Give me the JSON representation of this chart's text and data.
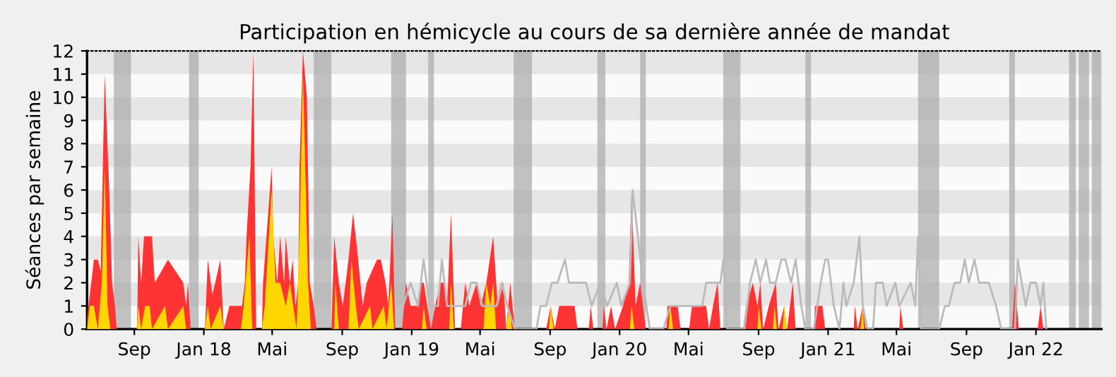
{
  "chart_data": {
    "type": "area",
    "title": "Participation en hémicycle au cours de sa dernière année de mandat",
    "ylabel": "Séances par semaine",
    "xlim": [
      "2017-06-10",
      "2022-04-26"
    ],
    "ylim": [
      0,
      12
    ],
    "yticks": [
      0,
      1,
      2,
      3,
      4,
      5,
      6,
      7,
      8,
      9,
      10,
      11,
      12
    ],
    "xticks": [
      {
        "value": "2017-09-01",
        "label": "Sep"
      },
      {
        "value": "2018-01-01",
        "label": "Jan 18"
      },
      {
        "value": "2018-05-01",
        "label": "Mai"
      },
      {
        "value": "2018-09-01",
        "label": "Sep"
      },
      {
        "value": "2019-01-01",
        "label": "Jan 19"
      },
      {
        "value": "2019-05-01",
        "label": "Mai"
      },
      {
        "value": "2019-09-01",
        "label": "Sep"
      },
      {
        "value": "2020-01-01",
        "label": "Jan 20"
      },
      {
        "value": "2020-05-01",
        "label": "Mai"
      },
      {
        "value": "2020-09-01",
        "label": "Sep"
      },
      {
        "value": "2021-01-01",
        "label": "Jan 21"
      },
      {
        "value": "2021-05-01",
        "label": "Mai"
      },
      {
        "value": "2021-09-01",
        "label": "Sep"
      },
      {
        "value": "2022-01-01",
        "label": "Jan 22"
      }
    ],
    "grid": false,
    "legend": false,
    "series": [
      {
        "type": "line",
        "color": "#bbbbbb",
        "x": [
          "2018-12-17",
          "2018-12-30",
          "2019-01-12",
          "2019-01-22",
          "2019-02-01",
          "2019-02-16",
          "2019-02-23",
          "2019-03-04",
          "2019-04-05",
          "2019-04-15",
          "2019-04-25",
          "2019-05-05",
          "2019-05-30",
          "2019-06-08",
          "2019-06-18",
          "2019-07-01",
          "2019-08-08",
          "2019-08-15",
          "2019-08-25",
          "2019-09-04",
          "2019-09-14",
          "2019-09-27",
          "2019-10-04",
          "2019-11-03",
          "2019-11-13",
          "2019-11-28",
          "2019-12-10",
          "2019-12-27",
          "2020-01-04",
          "2020-01-19",
          "2020-01-24",
          "2020-02-11",
          "2020-02-23",
          "2020-03-18",
          "2020-03-30",
          "2020-04-12",
          "2020-05-25",
          "2020-06-01",
          "2020-06-26",
          "2020-07-01",
          "2020-07-08",
          "2020-08-07",
          "2020-08-17",
          "2020-08-27",
          "2020-09-04",
          "2020-09-14",
          "2020-09-21",
          "2020-10-01",
          "2020-10-11",
          "2020-10-18",
          "2020-10-28",
          "2020-11-05",
          "2020-11-15",
          "2020-11-22",
          "2020-12-07",
          "2020-12-19",
          "2020-12-27",
          "2021-01-01",
          "2021-01-11",
          "2021-01-21",
          "2021-01-28",
          "2021-02-02",
          "2021-02-15",
          "2021-02-25",
          "2021-03-03",
          "2021-03-11",
          "2021-03-21",
          "2021-03-26",
          "2021-04-07",
          "2021-04-14",
          "2021-04-29",
          "2021-05-06",
          "2021-05-26",
          "2021-06-03",
          "2021-06-08",
          "2021-06-13",
          "2021-07-15",
          "2021-07-25",
          "2021-08-01",
          "2021-08-11",
          "2021-08-21",
          "2021-08-29",
          "2021-09-05",
          "2021-09-15",
          "2021-09-23",
          "2021-10-03",
          "2021-10-10",
          "2021-10-23",
          "2021-11-01",
          "2021-11-25",
          "2021-11-30",
          "2021-12-07",
          "2021-12-14",
          "2021-12-22",
          "2022-01-01",
          "2022-01-09",
          "2022-01-14",
          "2022-01-19"
        ],
        "values": [
          1,
          2,
          1,
          3,
          1,
          1,
          3,
          1,
          1,
          2,
          2,
          1,
          1,
          2,
          1,
          0,
          0,
          1,
          1,
          2,
          2,
          3,
          2,
          2,
          1,
          2,
          1,
          2,
          1,
          2,
          6,
          2,
          0,
          0,
          1,
          1,
          1,
          2,
          2,
          3,
          0,
          0,
          2,
          3,
          2,
          3,
          2,
          2,
          3,
          3,
          2,
          3,
          1,
          0,
          0,
          2,
          3,
          3,
          1,
          0,
          2,
          1,
          2,
          4,
          1,
          0,
          0,
          2,
          2,
          1,
          2,
          1,
          2,
          1,
          4,
          0,
          0,
          1,
          1,
          2,
          2,
          3,
          2,
          3,
          2,
          2,
          2,
          1,
          0,
          0,
          3,
          2,
          1,
          2,
          2,
          1,
          2,
          0
        ]
      },
      {
        "color": "#ff3333",
        "x": [
          "2017-06-10",
          "2017-06-15",
          "2017-06-22",
          "2017-06-29",
          "2017-07-04",
          "2017-07-11",
          "2017-07-19",
          "2017-07-24",
          "2017-07-29",
          "2017-08-01",
          "2017-09-06",
          "2017-09-08",
          "2017-09-13",
          "2017-09-18",
          "2017-09-25",
          "2017-10-02",
          "2017-10-07",
          "2017-10-30",
          "2017-11-26",
          "2017-12-01",
          "2017-12-04",
          "2017-12-09",
          "2018-01-03",
          "2018-01-08",
          "2018-01-16",
          "2018-01-21",
          "2018-01-30",
          "2018-02-05",
          "2018-02-15",
          "2018-03-09",
          "2018-03-14",
          "2018-03-17",
          "2018-03-24",
          "2018-03-29",
          "2018-04-03",
          "2018-04-13",
          "2018-04-15",
          "2018-04-30",
          "2018-05-03",
          "2018-05-10",
          "2018-05-15",
          "2018-05-22",
          "2018-05-25",
          "2018-06-01",
          "2018-06-06",
          "2018-06-11",
          "2018-06-16",
          "2018-06-18",
          "2018-06-24",
          "2018-07-01",
          "2018-07-06",
          "2018-07-13",
          "2018-07-18",
          "2018-08-13",
          "2018-08-18",
          "2018-08-26",
          "2018-09-02",
          "2018-09-12",
          "2018-09-20",
          "2018-09-27",
          "2018-10-07",
          "2018-10-14",
          "2018-11-01",
          "2018-11-08",
          "2018-11-16",
          "2018-11-21",
          "2018-11-28",
          "2018-12-03",
          "2018-12-15",
          "2018-12-22",
          "2018-12-30",
          "2019-01-10",
          "2019-01-17",
          "2019-01-22",
          "2019-02-04",
          "2019-02-11",
          "2019-02-21",
          "2019-02-28",
          "2019-03-04",
          "2019-03-11",
          "2019-03-18",
          "2019-03-28",
          "2019-04-05",
          "2019-04-12",
          "2019-04-25",
          "2019-05-02",
          "2019-05-12",
          "2019-05-24",
          "2019-06-01",
          "2019-06-11",
          "2019-06-16",
          "2019-06-23",
          "2019-07-01",
          "2019-08-25",
          "2019-09-02",
          "2019-09-09",
          "2019-09-17",
          "2019-09-19",
          "2019-10-14",
          "2019-10-19",
          "2019-11-08",
          "2019-11-11",
          "2019-11-16",
          "2019-12-02",
          "2019-12-04",
          "2019-12-09",
          "2019-12-17",
          "2019-12-24",
          "2020-01-07",
          "2020-01-17",
          "2020-01-22",
          "2020-01-29",
          "2020-02-06",
          "2020-02-16",
          "2020-03-23",
          "2020-03-25",
          "2020-04-12",
          "2020-04-17",
          "2020-05-02",
          "2020-05-07",
          "2020-06-01",
          "2020-06-06",
          "2020-06-13",
          "2020-06-21",
          "2020-06-26",
          "2020-08-05",
          "2020-08-10",
          "2020-08-22",
          "2020-08-30",
          "2020-09-04",
          "2020-09-09",
          "2020-09-19",
          "2020-10-01",
          "2020-10-06",
          "2020-10-16",
          "2020-10-21",
          "2020-10-31",
          "2020-11-05",
          "2020-12-07",
          "2020-12-09",
          "2020-12-22",
          "2020-12-27",
          "2021-02-15",
          "2021-02-17",
          "2021-02-22",
          "2021-03-03",
          "2021-03-08",
          "2021-05-06",
          "2021-05-08",
          "2021-05-13",
          "2021-11-20",
          "2021-11-25",
          "2021-12-02",
          "2022-01-04",
          "2022-01-09",
          "2022-01-14",
          "2022-04-26"
        ],
        "values": [
          0.5,
          1.5,
          3,
          3,
          2.5,
          11,
          6,
          2,
          1,
          0,
          0,
          4,
          2,
          4,
          4,
          4,
          2,
          3,
          2,
          1,
          2,
          0,
          0,
          3,
          1.5,
          2,
          3,
          0,
          1,
          1,
          2,
          4,
          7,
          12,
          0,
          0,
          2,
          7,
          4,
          2,
          4,
          2,
          4,
          2,
          3,
          1,
          2,
          7,
          12,
          10,
          2,
          1,
          0,
          0,
          4,
          2,
          1,
          3,
          5,
          3.5,
          1,
          2,
          3,
          3,
          2,
          1,
          5,
          0,
          0,
          2,
          1,
          1,
          2,
          2,
          0,
          1,
          2,
          2,
          1,
          5,
          0,
          0,
          2,
          1,
          2,
          1,
          2,
          4,
          1,
          2,
          0,
          2,
          0,
          0,
          1,
          0,
          1,
          1,
          1,
          0,
          0,
          1,
          0,
          0,
          1,
          0,
          1,
          0,
          1,
          2,
          6,
          1,
          2,
          0,
          0,
          1,
          1,
          0,
          0,
          1,
          1,
          0,
          1,
          2,
          0,
          0,
          1,
          2,
          1,
          2,
          0,
          1,
          2,
          0,
          1,
          0,
          2,
          0,
          0,
          1,
          1,
          0,
          0,
          1,
          0,
          1,
          0,
          0,
          1,
          0,
          0,
          2,
          0,
          0,
          1,
          0,
          0
        ]
      },
      {
        "color": "#ffd700",
        "x": [
          "2017-06-10",
          "2017-06-15",
          "2017-06-22",
          "2017-06-29",
          "2017-07-06",
          "2017-07-11",
          "2017-07-16",
          "2017-07-21",
          "2017-09-06",
          "2017-09-08",
          "2017-09-13",
          "2017-09-20",
          "2017-09-28",
          "2017-10-02",
          "2017-10-25",
          "2017-10-30",
          "2017-11-26",
          "2017-12-01",
          "2018-01-03",
          "2018-01-08",
          "2018-01-13",
          "2018-01-30",
          "2018-02-05",
          "2018-03-07",
          "2018-03-12",
          "2018-03-22",
          "2018-03-27",
          "2018-04-13",
          "2018-04-18",
          "2018-04-30",
          "2018-05-07",
          "2018-05-15",
          "2018-05-25",
          "2018-06-01",
          "2018-06-13",
          "2018-06-18",
          "2018-06-24",
          "2018-07-03",
          "2018-07-08",
          "2018-08-18",
          "2018-08-20",
          "2018-08-26",
          "2018-09-12",
          "2018-09-17",
          "2018-09-25",
          "2018-09-30",
          "2018-10-20",
          "2018-10-24",
          "2018-11-13",
          "2018-11-18",
          "2018-11-26",
          "2018-12-01",
          "2019-01-19",
          "2019-01-22",
          "2019-01-27",
          "2019-03-08",
          "2019-03-11",
          "2019-03-16",
          "2019-05-07",
          "2019-05-12",
          "2019-05-19",
          "2019-05-24",
          "2019-05-29",
          "2019-06-16",
          "2019-06-21",
          "2019-06-26",
          "2019-08-30",
          "2019-09-02",
          "2019-09-07",
          "2020-01-19",
          "2020-01-22",
          "2020-01-27",
          "2020-03-27",
          "2020-03-30",
          "2020-04-04",
          "2020-08-30",
          "2020-09-01",
          "2020-09-06",
          "2020-09-26",
          "2020-09-29",
          "2020-10-03",
          "2020-10-13",
          "2020-10-16",
          "2020-10-21",
          "2021-02-27",
          "2021-03-03",
          "2021-03-05",
          "2022-04-26"
        ],
        "values": [
          0,
          1,
          1,
          0,
          2,
          7,
          1,
          0,
          0,
          1,
          0,
          1,
          1,
          0,
          1,
          0,
          1,
          0,
          0,
          1,
          0,
          1,
          0,
          0,
          1,
          4,
          0,
          0,
          1,
          6,
          2,
          2,
          1,
          2,
          0,
          4,
          11,
          2,
          0,
          0,
          2,
          0,
          0,
          3,
          1,
          0,
          1,
          0,
          1,
          0,
          2,
          0,
          0,
          1,
          0,
          0,
          2,
          0,
          0,
          2,
          1,
          2,
          0,
          0,
          1,
          0,
          0,
          1,
          0,
          0,
          1,
          0,
          0,
          1,
          0,
          0,
          1,
          0,
          0,
          1,
          0,
          0,
          1,
          0,
          0,
          1,
          0,
          0
        ]
      }
    ],
    "bands": [
      {
        "axis": "y",
        "from": 1,
        "to": 2,
        "color": "#e6e6e6"
      },
      {
        "axis": "y",
        "from": 3,
        "to": 4,
        "color": "#e6e6e6"
      },
      {
        "axis": "y",
        "from": 5,
        "to": 6,
        "color": "#e6e6e6"
      },
      {
        "axis": "y",
        "from": 7,
        "to": 8,
        "color": "#e6e6e6"
      },
      {
        "axis": "y",
        "from": 9,
        "to": 10,
        "color": "#e6e6e6"
      },
      {
        "axis": "y",
        "from": 11,
        "to": 12,
        "color": "#e6e6e6"
      },
      {
        "axis": "x",
        "from": "2017-07-27",
        "to": "2017-08-26",
        "color": "#a8a8a8"
      },
      {
        "axis": "x",
        "from": "2017-12-06",
        "to": "2017-12-23",
        "color": "#a8a8a8"
      },
      {
        "axis": "x",
        "from": "2018-07-13",
        "to": "2018-08-13",
        "color": "#a8a8a8"
      },
      {
        "axis": "x",
        "from": "2018-11-26",
        "to": "2018-12-22",
        "color": "#a8a8a8"
      },
      {
        "axis": "x",
        "from": "2019-01-30",
        "to": "2019-02-09",
        "color": "#a8a8a8"
      },
      {
        "axis": "x",
        "from": "2019-06-29",
        "to": "2019-07-31",
        "color": "#a8a8a8"
      },
      {
        "axis": "x",
        "from": "2019-11-23",
        "to": "2019-12-07",
        "color": "#a8a8a8"
      },
      {
        "axis": "x",
        "from": "2020-02-06",
        "to": "2020-02-16",
        "color": "#a8a8a8"
      },
      {
        "axis": "x",
        "from": "2020-07-01",
        "to": "2020-07-31",
        "color": "#a8a8a8"
      },
      {
        "axis": "x",
        "from": "2020-11-22",
        "to": "2020-12-02",
        "color": "#a8a8a8"
      },
      {
        "axis": "x",
        "from": "2021-06-08",
        "to": "2021-07-15",
        "color": "#a8a8a8"
      },
      {
        "axis": "x",
        "from": "2021-11-15",
        "to": "2021-11-25",
        "color": "#a8a8a8"
      },
      {
        "axis": "x",
        "from": "2022-02-28",
        "to": "2022-03-12",
        "color": "#a8a8a8"
      },
      {
        "axis": "x",
        "from": "2022-03-17",
        "to": "2022-04-04",
        "color": "#a8a8a8"
      },
      {
        "axis": "x",
        "from": "2022-04-09",
        "to": "2022-04-26",
        "color": "#a8a8a8"
      }
    ]
  }
}
